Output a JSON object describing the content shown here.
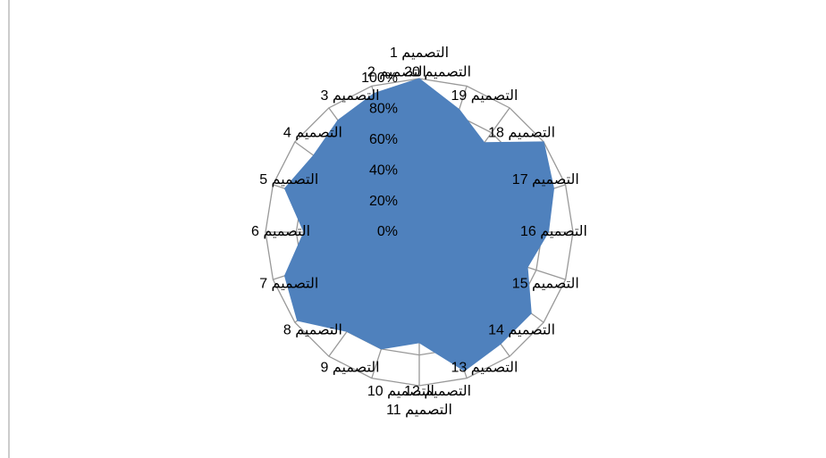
{
  "chart_data": {
    "type": "radar",
    "categories": [
      "التصميم 1",
      "التصميم 2",
      "التصميم 3",
      "التصميم 4",
      "التصميم 5",
      "التصميم 6",
      "التصميم 7",
      "التصميم 8",
      "التصميم 9",
      "التصميم 10",
      "التصميم 11",
      "التصميم 12",
      "التصميم 13",
      "التصميم 14",
      "التصميم 15",
      "التصميم 16",
      "التصميم 17",
      "التصميم 18",
      "التصميم 19",
      "التصميم 20"
    ],
    "values": [
      100,
      95,
      90,
      85,
      92,
      75,
      92,
      98,
      80,
      80,
      72,
      95,
      90,
      90,
      74,
      84,
      92,
      100,
      72,
      84
    ],
    "color": "#4f81bd",
    "ylim": [
      0,
      100
    ],
    "yticks": [
      {
        "value": 0,
        "label": "0%"
      },
      {
        "value": 20,
        "label": "20%"
      },
      {
        "value": 40,
        "label": "40%"
      },
      {
        "value": 60,
        "label": "60%"
      },
      {
        "value": 80,
        "label": "80%"
      },
      {
        "value": 100,
        "label": "100%"
      }
    ],
    "grid": true
  }
}
